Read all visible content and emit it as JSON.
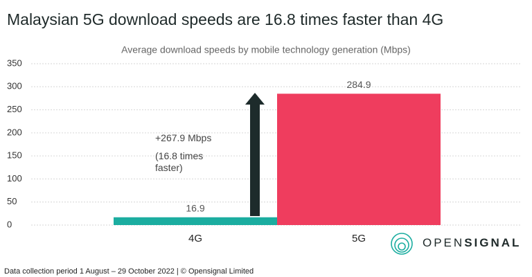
{
  "chart_data": {
    "type": "bar",
    "title": "Malaysian 5G download speeds are 16.8 times faster than 4G",
    "subtitle": "Average download speeds by mobile technology generation (Mbps)",
    "categories": [
      "4G",
      "5G"
    ],
    "values": [
      16.9,
      284.9
    ],
    "colors": [
      "#1bada0",
      "#ef3d5e"
    ],
    "ylim": [
      0,
      350
    ],
    "yticks": [
      0,
      50,
      100,
      150,
      200,
      250,
      300,
      350
    ],
    "grid": true,
    "annotations": [
      "+267.9 Mbps",
      "(16.8 times faster)"
    ],
    "footer": "Data collection period 1 August – 29 October 2022  |  © Opensignal Limited",
    "logo": [
      "OPEN",
      "SIGNAL"
    ]
  }
}
